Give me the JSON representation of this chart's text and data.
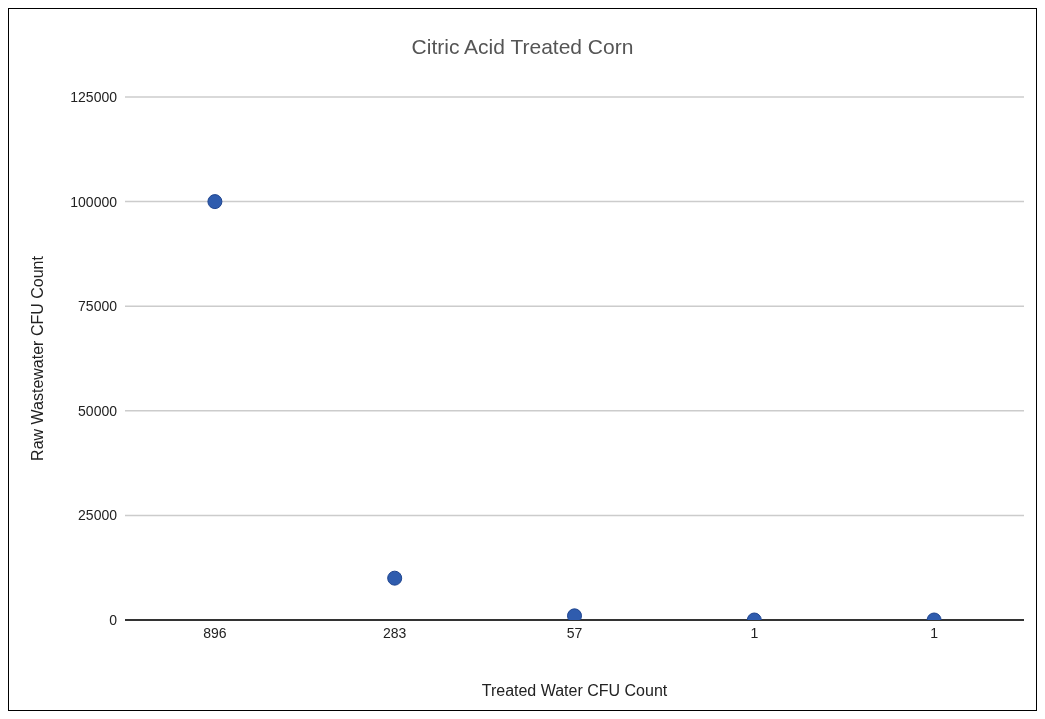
{
  "chart_data": {
    "type": "scatter",
    "title": "Citric Acid Treated Corn",
    "xlabel": "Treated Water CFU Count",
    "ylabel": "Raw Wastewater CFU Count",
    "categories": [
      "896",
      "283",
      "57",
      "1",
      "1"
    ],
    "series": [
      {
        "color": "#2f5cae",
        "values": [
          100000,
          10000,
          1000,
          0,
          0
        ]
      }
    ],
    "ylim": [
      0,
      125000
    ],
    "yticks": [
      0,
      25000,
      50000,
      75000,
      100000,
      125000
    ],
    "grid": "y",
    "marker": "circle",
    "legend": false
  }
}
